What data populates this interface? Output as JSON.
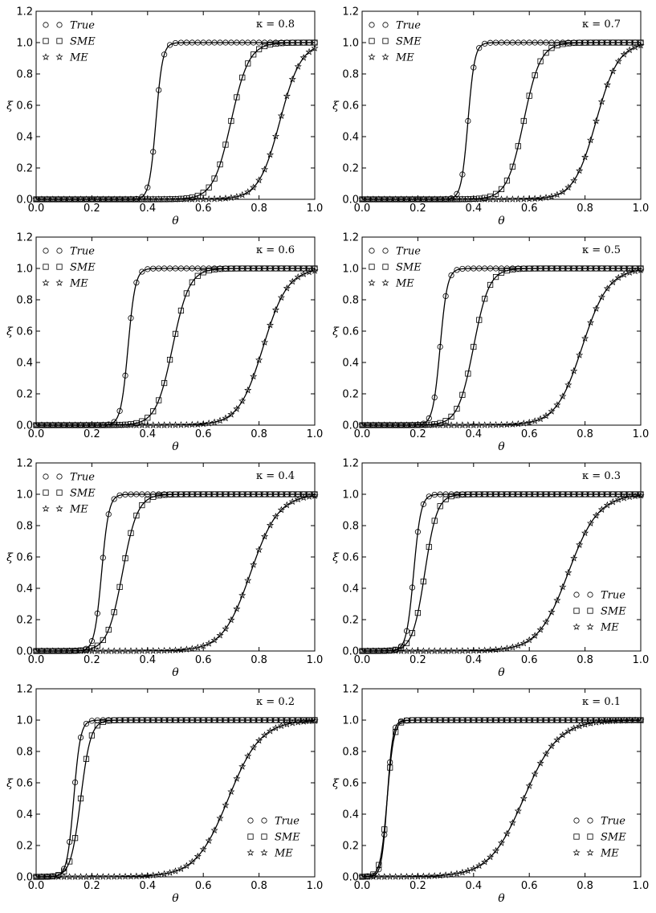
{
  "figure": {
    "xlabel": "θ",
    "ylabel": "ξ",
    "xlim": [
      0.0,
      1.0
    ],
    "ylim": [
      0.0,
      1.2
    ],
    "xticks": [
      "0.0",
      "0.2",
      "0.4",
      "0.6",
      "0.8",
      "1.0"
    ],
    "yticks": [
      "0.0",
      "0.2",
      "0.4",
      "0.6",
      "0.8",
      "1.0",
      "1.2"
    ]
  },
  "chart_data": [
    {
      "type": "line",
      "kappa_label": "κ = 0.8",
      "xlabel": "θ",
      "ylabel": "ξ",
      "xlim": [
        0,
        1
      ],
      "ylim": [
        0,
        1.2
      ],
      "grid": false,
      "legend_position": "top-left",
      "series": [
        {
          "name": "True",
          "marker": "circle",
          "midpoint": 0.43,
          "width": 0.012
        },
        {
          "name": "SME",
          "marker": "square",
          "midpoint": 0.7,
          "width": 0.032
        },
        {
          "name": "ME",
          "marker": "star",
          "midpoint": 0.875,
          "width": 0.038
        }
      ]
    },
    {
      "type": "line",
      "kappa_label": "κ = 0.7",
      "xlabel": "θ",
      "ylabel": "ξ",
      "xlim": [
        0,
        1
      ],
      "ylim": [
        0,
        1.2
      ],
      "grid": false,
      "legend_position": "top-left",
      "series": [
        {
          "name": "True",
          "marker": "circle",
          "midpoint": 0.38,
          "width": 0.012
        },
        {
          "name": "SME",
          "marker": "square",
          "midpoint": 0.58,
          "width": 0.03
        },
        {
          "name": "ME",
          "marker": "star",
          "midpoint": 0.84,
          "width": 0.04
        }
      ]
    },
    {
      "type": "line",
      "kappa_label": "κ = 0.6",
      "xlabel": "θ",
      "ylabel": "ξ",
      "xlim": [
        0,
        1
      ],
      "ylim": [
        0,
        1.2
      ],
      "grid": false,
      "legend_position": "top-left",
      "series": [
        {
          "name": "True",
          "marker": "circle",
          "midpoint": 0.33,
          "width": 0.013
        },
        {
          "name": "SME",
          "marker": "square",
          "midpoint": 0.49,
          "width": 0.03
        },
        {
          "name": "ME",
          "marker": "star",
          "midpoint": 0.815,
          "width": 0.044
        }
      ]
    },
    {
      "type": "line",
      "kappa_label": "κ = 0.5",
      "xlabel": "θ",
      "ylabel": "ξ",
      "xlim": [
        0,
        1
      ],
      "ylim": [
        0,
        1.2
      ],
      "grid": false,
      "legend_position": "top-left",
      "series": [
        {
          "name": "True",
          "marker": "circle",
          "midpoint": 0.28,
          "width": 0.013
        },
        {
          "name": "SME",
          "marker": "square",
          "midpoint": 0.4,
          "width": 0.028
        },
        {
          "name": "ME",
          "marker": "star",
          "midpoint": 0.79,
          "width": 0.047
        }
      ]
    },
    {
      "type": "line",
      "kappa_label": "κ = 0.4",
      "xlabel": "θ",
      "ylabel": "ξ",
      "xlim": [
        0,
        1
      ],
      "ylim": [
        0,
        1.2
      ],
      "grid": false,
      "legend_position": "top-left",
      "series": [
        {
          "name": "True",
          "marker": "circle",
          "midpoint": 0.235,
          "width": 0.013
        },
        {
          "name": "SME",
          "marker": "square",
          "midpoint": 0.31,
          "width": 0.027
        },
        {
          "name": "ME",
          "marker": "star",
          "midpoint": 0.77,
          "width": 0.05
        }
      ]
    },
    {
      "type": "line",
      "kappa_label": "κ = 0.3",
      "xlabel": "θ",
      "ylabel": "ξ",
      "xlim": [
        0,
        1
      ],
      "ylim": [
        0,
        1.2
      ],
      "grid": false,
      "legend_position": "bottom-right",
      "series": [
        {
          "name": "True",
          "marker": "circle",
          "midpoint": 0.185,
          "width": 0.013
        },
        {
          "name": "SME",
          "marker": "square",
          "midpoint": 0.225,
          "width": 0.022
        },
        {
          "name": "ME",
          "marker": "star",
          "midpoint": 0.74,
          "width": 0.054
        }
      ]
    },
    {
      "type": "line",
      "kappa_label": "κ = 0.2",
      "xlabel": "θ",
      "ylabel": "ξ",
      "xlim": [
        0,
        1
      ],
      "ylim": [
        0,
        1.2
      ],
      "grid": false,
      "legend_position": "bottom-right",
      "series": [
        {
          "name": "True",
          "marker": "circle",
          "midpoint": 0.135,
          "width": 0.012
        },
        {
          "name": "SME",
          "marker": "square",
          "midpoint": 0.16,
          "width": 0.018
        },
        {
          "name": "ME",
          "marker": "star",
          "midpoint": 0.69,
          "width": 0.058
        }
      ]
    },
    {
      "type": "line",
      "kappa_label": "κ = 0.1",
      "xlabel": "θ",
      "ylabel": "ξ",
      "xlim": [
        0,
        1
      ],
      "ylim": [
        0,
        1.2
      ],
      "grid": false,
      "legend_position": "bottom-right",
      "series": [
        {
          "name": "True",
          "marker": "circle",
          "midpoint": 0.09,
          "width": 0.01
        },
        {
          "name": "SME",
          "marker": "square",
          "midpoint": 0.09,
          "width": 0.012
        },
        {
          "name": "ME",
          "marker": "star",
          "midpoint": 0.58,
          "width": 0.062
        }
      ]
    }
  ]
}
